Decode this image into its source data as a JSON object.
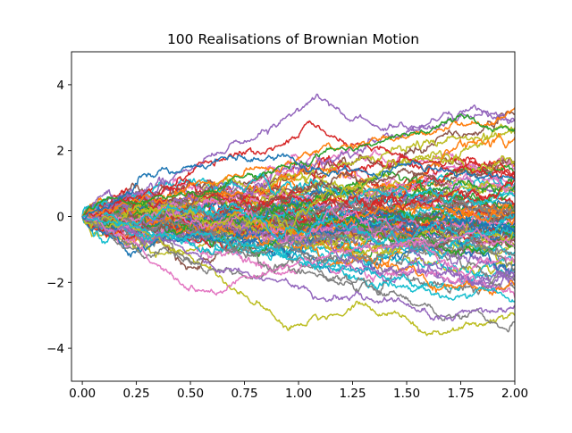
{
  "chart_data": {
    "type": "line",
    "title": "100 Realisations of Brownian Motion",
    "xlabel": "",
    "ylabel": "",
    "xlim": [
      -0.05,
      2.0
    ],
    "ylim": [
      -5,
      5
    ],
    "xticks": [
      0.0,
      0.25,
      0.5,
      0.75,
      1.0,
      1.25,
      1.5,
      1.75,
      2.0
    ],
    "xtick_labels": [
      "0.00",
      "0.25",
      "0.50",
      "0.75",
      "1.00",
      "1.25",
      "1.50",
      "1.75",
      "2.00"
    ],
    "yticks": [
      -4,
      -2,
      0,
      2,
      4
    ],
    "ytick_labels": [
      "−4",
      "−2",
      "0",
      "2",
      "4"
    ],
    "grid": false,
    "legend": "none",
    "n_paths": 100,
    "start": [
      0.0,
      0.0
    ],
    "palette": [
      "#1f77b4",
      "#ff7f0e",
      "#2ca02c",
      "#d62728",
      "#9467bd",
      "#8c564b",
      "#e377c2",
      "#7f7f7f",
      "#bcbd22",
      "#17becf"
    ],
    "highlighted_paths": [
      {
        "color": "#9467bd",
        "points": [
          [
            0,
            0
          ],
          [
            0.25,
            0.7
          ],
          [
            0.5,
            1.4
          ],
          [
            0.75,
            2.3
          ],
          [
            1.0,
            3.2
          ],
          [
            1.08,
            3.65
          ],
          [
            1.25,
            2.9
          ],
          [
            1.5,
            2.7
          ],
          [
            1.75,
            3.2
          ],
          [
            2.0,
            2.9
          ]
        ]
      },
      {
        "color": "#d62728",
        "points": [
          [
            0,
            0
          ],
          [
            0.25,
            0.6
          ],
          [
            0.5,
            1.3
          ],
          [
            0.75,
            1.9
          ],
          [
            1.0,
            2.4
          ],
          [
            1.05,
            2.9
          ],
          [
            1.25,
            2.2
          ],
          [
            1.5,
            1.8
          ],
          [
            1.75,
            1.5
          ],
          [
            2.0,
            1.2
          ]
        ]
      },
      {
        "color": "#ff7f0e",
        "points": [
          [
            0,
            0
          ],
          [
            0.25,
            0.5
          ],
          [
            0.5,
            1.0
          ],
          [
            0.75,
            1.4
          ],
          [
            1.0,
            1.8
          ],
          [
            1.25,
            2.1
          ],
          [
            1.5,
            2.4
          ],
          [
            1.75,
            2.8
          ],
          [
            2.0,
            3.3
          ]
        ]
      },
      {
        "color": "#2ca02c",
        "points": [
          [
            0,
            0
          ],
          [
            0.25,
            0.4
          ],
          [
            0.5,
            0.7
          ],
          [
            0.75,
            1.2
          ],
          [
            1.0,
            1.6
          ],
          [
            1.25,
            2.0
          ],
          [
            1.5,
            2.5
          ],
          [
            1.75,
            3.1
          ],
          [
            2.0,
            2.6
          ]
        ]
      },
      {
        "color": "#bcbd22",
        "points": [
          [
            0,
            0
          ],
          [
            0.25,
            -0.4
          ],
          [
            0.5,
            -1.2
          ],
          [
            0.75,
            -2.4
          ],
          [
            0.95,
            -3.45
          ],
          [
            1.25,
            -2.7
          ],
          [
            1.5,
            -3.1
          ],
          [
            1.65,
            -3.55
          ],
          [
            1.85,
            -3.3
          ],
          [
            2.0,
            -3.0
          ]
        ]
      },
      {
        "color": "#7f7f7f",
        "points": [
          [
            0,
            0
          ],
          [
            0.25,
            -1.0
          ],
          [
            0.5,
            -1.4
          ],
          [
            0.75,
            -1.8
          ],
          [
            1.0,
            -1.6
          ],
          [
            1.25,
            -2.0
          ],
          [
            1.5,
            -2.5
          ],
          [
            1.75,
            -3.1
          ],
          [
            1.97,
            -3.5
          ],
          [
            2.0,
            -3.2
          ]
        ]
      },
      {
        "color": "#9467bd",
        "points": [
          [
            0,
            0
          ],
          [
            0.25,
            -0.6
          ],
          [
            0.5,
            -1.1
          ],
          [
            0.75,
            -1.7
          ],
          [
            1.0,
            -2.2
          ],
          [
            1.25,
            -2.4
          ],
          [
            1.5,
            -2.7
          ],
          [
            1.75,
            -2.9
          ],
          [
            2.0,
            -2.7
          ]
        ]
      },
      {
        "color": "#e377c2",
        "points": [
          [
            0,
            0
          ],
          [
            0.25,
            -0.8
          ],
          [
            0.4,
            -1.7
          ],
          [
            0.6,
            -2.25
          ],
          [
            0.75,
            -1.8
          ],
          [
            1.0,
            -1.4
          ],
          [
            1.25,
            -1.0
          ],
          [
            1.5,
            -0.8
          ],
          [
            1.75,
            -0.6
          ],
          [
            2.0,
            -0.9
          ]
        ]
      },
      {
        "color": "#17becf",
        "points": [
          [
            0,
            0
          ],
          [
            0.25,
            -0.3
          ],
          [
            0.5,
            -0.6
          ],
          [
            0.75,
            -0.9
          ],
          [
            1.0,
            -1.2
          ],
          [
            1.25,
            -1.6
          ],
          [
            1.5,
            -2.1
          ],
          [
            1.75,
            -2.4
          ],
          [
            2.0,
            -2.6
          ]
        ]
      },
      {
        "color": "#1f77b4",
        "points": [
          [
            0,
            0
          ],
          [
            0.25,
            1.0
          ],
          [
            0.5,
            1.5
          ],
          [
            0.75,
            1.8
          ],
          [
            1.0,
            1.6
          ],
          [
            1.25,
            1.4
          ],
          [
            1.5,
            1.6
          ],
          [
            1.75,
            1.3
          ],
          [
            2.0,
            1.1
          ]
        ]
      }
    ]
  }
}
